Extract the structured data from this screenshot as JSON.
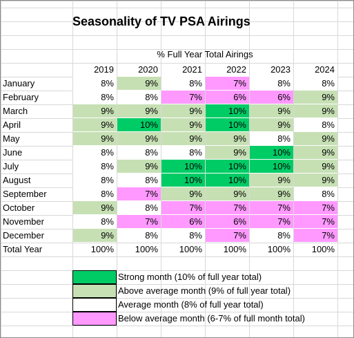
{
  "chart_data": {
    "type": "table",
    "title": "Seasonality of TV PSA Airings",
    "subtitle": "% Full Year Total Airings",
    "columns": [
      "2019",
      "2020",
      "2021",
      "2022",
      "2023",
      "2024"
    ],
    "rows": [
      {
        "label": "January",
        "values": [
          "8%",
          "9%",
          "8%",
          "7%",
          "8%",
          "8%"
        ]
      },
      {
        "label": "February",
        "values": [
          "8%",
          "8%",
          "7%",
          "6%",
          "6%",
          "9%"
        ]
      },
      {
        "label": "March",
        "values": [
          "9%",
          "9%",
          "9%",
          "10%",
          "9%",
          "9%"
        ]
      },
      {
        "label": "April",
        "values": [
          "9%",
          "10%",
          "9%",
          "10%",
          "9%",
          "8%"
        ]
      },
      {
        "label": "May",
        "values": [
          "9%",
          "9%",
          "9%",
          "9%",
          "8%",
          "9%"
        ]
      },
      {
        "label": "June",
        "values": [
          "8%",
          "8%",
          "8%",
          "9%",
          "10%",
          "9%"
        ]
      },
      {
        "label": "July",
        "values": [
          "8%",
          "9%",
          "10%",
          "10%",
          "10%",
          "9%"
        ]
      },
      {
        "label": "August",
        "values": [
          "8%",
          "8%",
          "10%",
          "10%",
          "9%",
          "9%"
        ]
      },
      {
        "label": "September",
        "values": [
          "8%",
          "7%",
          "9%",
          "9%",
          "9%",
          "8%"
        ]
      },
      {
        "label": "October",
        "values": [
          "9%",
          "8%",
          "7%",
          "7%",
          "7%",
          "7%"
        ]
      },
      {
        "label": "November",
        "values": [
          "8%",
          "7%",
          "6%",
          "6%",
          "7%",
          "7%"
        ]
      },
      {
        "label": "December",
        "values": [
          "9%",
          "8%",
          "8%",
          "7%",
          "8%",
          "7%"
        ]
      }
    ],
    "total_row": {
      "label": "Total Year",
      "values": [
        "100%",
        "100%",
        "100%",
        "100%",
        "100%",
        "100%"
      ]
    },
    "colors": {
      "strong": "#00cc66",
      "above": "#c6e0b4",
      "average": "#ffffff",
      "below": "#ff99ff"
    },
    "legend": [
      {
        "category": "strong",
        "text": "Strong month (10% of full year total)"
      },
      {
        "category": "above",
        "text": "Above average month (9% of full year  total)"
      },
      {
        "category": "average",
        "text": "Average month (8% of full year total)"
      },
      {
        "category": "below",
        "text": "Below average month (6-7% of full month total)"
      }
    ]
  }
}
